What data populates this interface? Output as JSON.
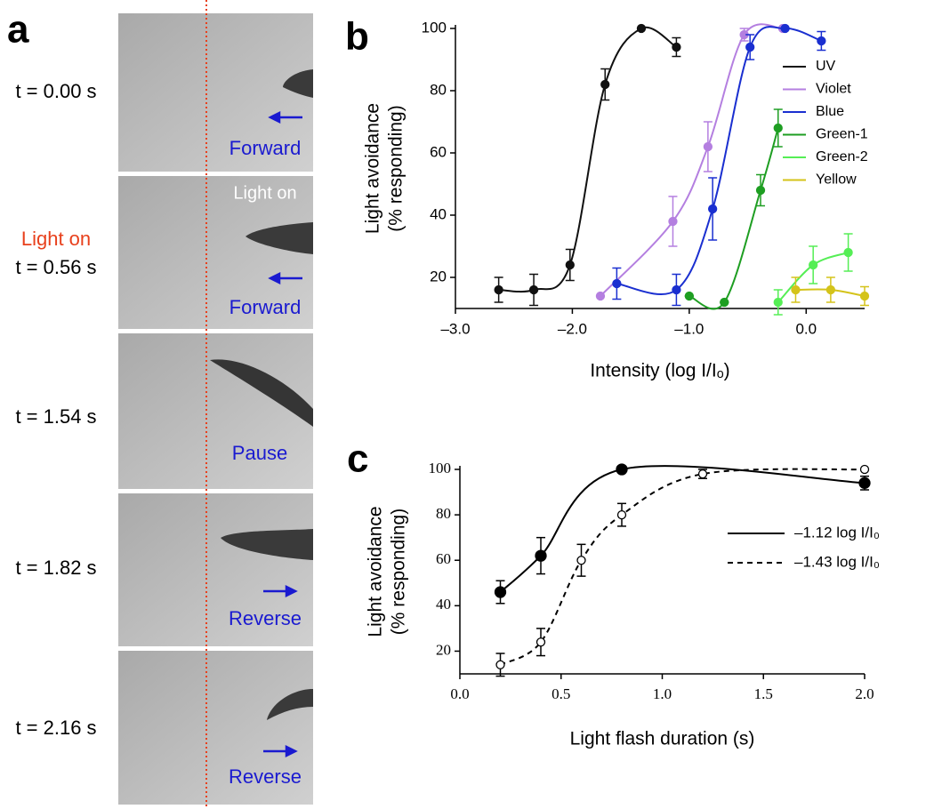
{
  "panel_labels": [
    "a",
    "b",
    "c"
  ],
  "panel_a": {
    "light_marker": "Light on",
    "frame_note": "Light on",
    "frames": [
      {
        "time": "t = 0.00 s",
        "direction": "Forward"
      },
      {
        "time": "t = 0.56 s",
        "direction": "Forward"
      },
      {
        "time": "t = 1.54 s",
        "direction": "Pause"
      },
      {
        "time": "t = 1.82 s",
        "direction": "Reverse"
      },
      {
        "time": "t = 2.16 s",
        "direction": "Reverse"
      }
    ]
  },
  "chart_data": [
    {
      "type": "line",
      "x_label": "Intensity (log I/Iₒ)",
      "y_label": [
        "Light avoidance",
        "(% responding)"
      ],
      "xlim": [
        -3.0,
        0.5
      ],
      "ylim": [
        10,
        100
      ],
      "xticks": [
        {
          "value": -3.0,
          "label": "–3.0"
        },
        {
          "value": -2.0,
          "label": "–2.0"
        },
        {
          "value": -1.0,
          "label": "–1.0"
        },
        {
          "value": 0.0,
          "label": "0.0"
        }
      ],
      "yticks": [
        20,
        40,
        60,
        80,
        100
      ],
      "legend": "upper right",
      "series": [
        {
          "name": "UV",
          "color": "#111111",
          "x": [
            -2.63,
            -2.33,
            -2.02,
            -1.72,
            -1.41,
            -1.11
          ],
          "values": [
            16,
            16,
            24,
            82,
            100,
            94
          ],
          "errors": [
            4,
            5,
            5,
            5,
            0,
            3
          ]
        },
        {
          "name": "Violet",
          "color": "#b47fe0",
          "x": [
            -1.76,
            -1.14,
            -0.84,
            -0.53,
            -0.2
          ],
          "values": [
            14,
            38,
            62,
            98,
            100
          ],
          "errors": [
            0,
            8,
            8,
            2,
            0
          ]
        },
        {
          "name": "Blue",
          "color": "#1a2fd0",
          "x": [
            -1.62,
            -1.11,
            -0.8,
            -0.48,
            -0.18,
            0.13
          ],
          "values": [
            18,
            16,
            42,
            94,
            100,
            96
          ],
          "errors": [
            5,
            5,
            10,
            4,
            0,
            3
          ]
        },
        {
          "name": "Green-1",
          "color": "#1e9e22",
          "x": [
            -1.0,
            -0.7,
            -0.39,
            -0.24
          ],
          "values": [
            14,
            12,
            48,
            68
          ],
          "errors": [
            0,
            0,
            5,
            6
          ]
        },
        {
          "name": "Green-2",
          "color": "#55ee55",
          "x": [
            -0.24,
            0.06,
            0.36
          ],
          "values": [
            12,
            24,
            28
          ],
          "errors": [
            4,
            6,
            6
          ]
        },
        {
          "name": "Yellow",
          "color": "#d4c31a",
          "x": [
            -0.09,
            0.21,
            0.5
          ],
          "values": [
            16,
            16,
            14
          ],
          "errors": [
            4,
            4,
            3
          ]
        }
      ]
    },
    {
      "type": "line",
      "x_label": "Light flash duration (s)",
      "y_label": [
        "Light avoidance",
        "(% responding)"
      ],
      "xlim": [
        0.0,
        2.0
      ],
      "ylim": [
        10,
        100
      ],
      "xticks": [
        {
          "value": 0.0,
          "label": "0.0"
        },
        0.5,
        {
          "value": 1.0,
          "label": "1.0"
        },
        1.5,
        {
          "value": 2.0,
          "label": "2.0"
        }
      ],
      "yticks": [
        20,
        40,
        60,
        80,
        100
      ],
      "legend": "right",
      "series": [
        {
          "name": "–1.12 log I/I₀",
          "color": "#000000",
          "marker": "filled",
          "dash": "solid",
          "x": [
            0.2,
            0.4,
            0.8,
            2.0
          ],
          "values": [
            46,
            62,
            100,
            94
          ],
          "errors": [
            5,
            8,
            0,
            3
          ]
        },
        {
          "name": "–1.43 log I/I₀",
          "color": "#000000",
          "marker": "open",
          "dash": "dashed",
          "x": [
            0.2,
            0.4,
            0.6,
            0.8,
            1.2,
            2.0
          ],
          "values": [
            14,
            24,
            60,
            80,
            98,
            100
          ],
          "errors": [
            5,
            6,
            7,
            5,
            2,
            0
          ]
        }
      ]
    }
  ]
}
